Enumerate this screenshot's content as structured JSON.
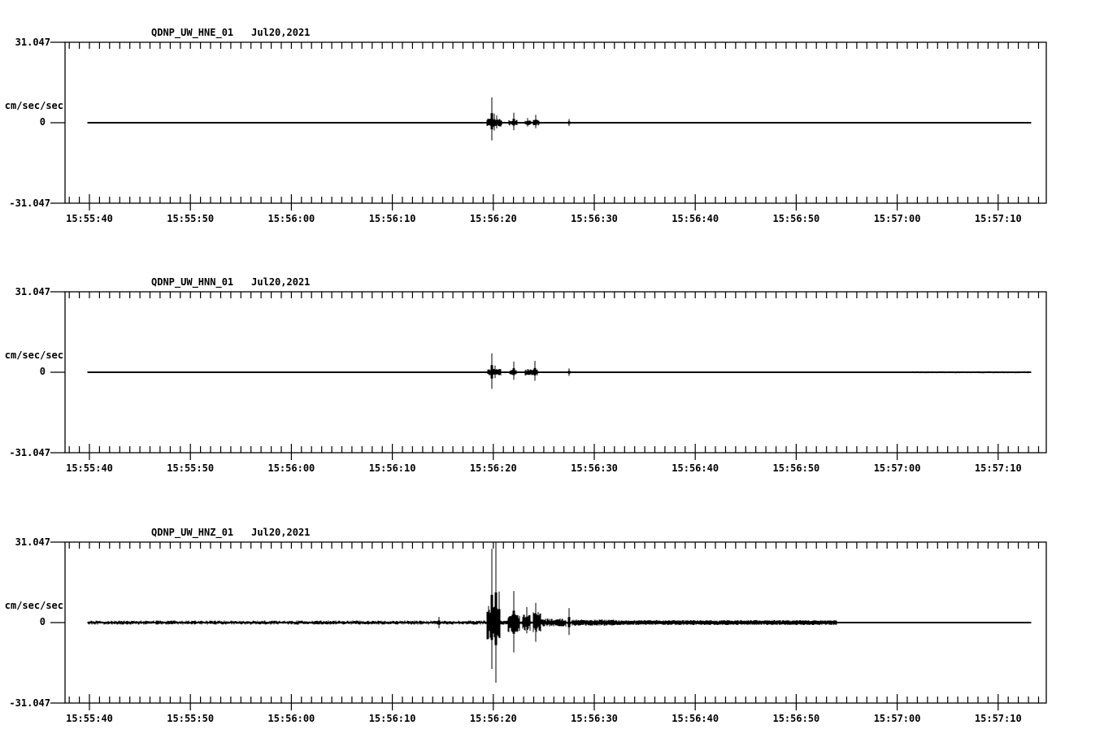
{
  "page": {
    "background": "#ffffff",
    "ink": "#000000"
  },
  "y_axis": {
    "ylim_abs": 31.047,
    "max": "31.047",
    "unit": "cm/sec/sec",
    "zero": "0",
    "min": "-31.047"
  },
  "time_axis": {
    "labels": [
      "15:55:40",
      "15:55:50",
      "15:56:00",
      "15:56:10",
      "15:56:20",
      "15:56:30",
      "15:56:40",
      "15:56:50",
      "15:57:00",
      "15:57:10"
    ],
    "major_step_s": 10,
    "minor_step_s": 1
  },
  "panels": [
    {
      "station": "QDNP_UW_HNE_01",
      "date": "Jul20,2021",
      "y_axis": {
        "max": "31.047",
        "unit": "cm/sec/sec",
        "zero": "0",
        "min": "-31.047"
      }
    },
    {
      "station": "QDNP_UW_HNN_01",
      "date": "Jul20,2021",
      "y_axis": {
        "max": "31.047",
        "unit": "cm/sec/sec",
        "zero": "0",
        "min": "-31.047"
      }
    },
    {
      "station": "QDNP_UW_HNZ_01",
      "date": "Jul20,2021",
      "y_axis": {
        "max": "31.047",
        "unit": "cm/sec/sec",
        "zero": "0",
        "min": "-31.047"
      }
    }
  ],
  "chart_data": [
    {
      "type": "line",
      "title": "QDNP_UW_HNE_01  Jul20,2021",
      "station_id": "QDNP_UW_HNE_01",
      "date": "Jul20,2021",
      "ylabel": "cm/sec/sec",
      "ylim": [
        -31.047,
        31.047
      ],
      "baseline": 0,
      "x_tick_labels": [
        "15:55:40",
        "15:55:50",
        "15:56:00",
        "15:56:10",
        "15:56:20",
        "15:56:30",
        "15:56:40",
        "15:56:50",
        "15:57:00",
        "15:57:10"
      ],
      "t_units": "seconds after 15:55:40",
      "amplitude_units": "cm/sec/sec",
      "trace_window_s": [
        -0.15,
        93.2
      ],
      "seed": 101,
      "noise_bands": [],
      "burst_clusters": [
        {
          "t0": 39.3,
          "t1": 40.9,
          "amp": 1.6
        },
        {
          "t0": 41.5,
          "t1": 42.4,
          "amp": 1.1
        },
        {
          "t0": 43.1,
          "t1": 43.8,
          "amp": 0.9
        },
        {
          "t0": 43.9,
          "t1": 44.6,
          "amp": 1.1
        }
      ],
      "spikes": [
        {
          "t": 39.85,
          "up": 9.8,
          "down": 6.8
        },
        {
          "t": 40.1,
          "up": 3.5,
          "down": 3.0
        },
        {
          "t": 40.35,
          "up": 2.8,
          "down": 2.2
        },
        {
          "t": 42.0,
          "up": 3.9,
          "down": 2.9
        },
        {
          "t": 43.4,
          "up": 1.8,
          "down": 1.5
        },
        {
          "t": 44.2,
          "up": 3.0,
          "down": 2.1
        },
        {
          "t": 47.5,
          "up": 1.4,
          "down": 1.3
        }
      ]
    },
    {
      "type": "line",
      "title": "QDNP_UW_HNN_01  Jul20,2021",
      "station_id": "QDNP_UW_HNN_01",
      "date": "Jul20,2021",
      "ylabel": "cm/sec/sec",
      "ylim": [
        -31.047,
        31.047
      ],
      "baseline": 0,
      "x_tick_labels": [
        "15:55:40",
        "15:55:50",
        "15:56:00",
        "15:56:10",
        "15:56:20",
        "15:56:30",
        "15:56:40",
        "15:56:50",
        "15:57:00",
        "15:57:10"
      ],
      "t_units": "seconds after 15:55:40",
      "amplitude_units": "cm/sec/sec",
      "trace_window_s": [
        -0.15,
        93.2
      ],
      "seed": 202,
      "noise_bands": [
        {
          "t0": 81.0,
          "t1": 93.2,
          "amp": 0.4
        }
      ],
      "burst_clusters": [
        {
          "t0": 39.4,
          "t1": 40.8,
          "amp": 1.3
        },
        {
          "t0": 41.6,
          "t1": 42.3,
          "amp": 0.9
        },
        {
          "t0": 43.1,
          "t1": 44.4,
          "amp": 1.2
        }
      ],
      "spikes": [
        {
          "t": 39.85,
          "up": 7.3,
          "down": 6.4
        },
        {
          "t": 40.15,
          "up": 2.6,
          "down": 2.3
        },
        {
          "t": 42.0,
          "up": 4.1,
          "down": 2.9
        },
        {
          "t": 44.15,
          "up": 4.4,
          "down": 3.3
        },
        {
          "t": 47.5,
          "up": 1.5,
          "down": 1.4
        }
      ]
    },
    {
      "type": "line",
      "title": "QDNP_UW_HNZ_01  Jul20,2021",
      "station_id": "QDNP_UW_HNZ_01",
      "date": "Jul20,2021",
      "ylabel": "cm/sec/sec",
      "ylim": [
        -31.047,
        31.047
      ],
      "baseline": 0,
      "x_tick_labels": [
        "15:55:40",
        "15:55:50",
        "15:56:00",
        "15:56:10",
        "15:56:20",
        "15:56:30",
        "15:56:40",
        "15:56:50",
        "15:57:00",
        "15:57:10"
      ],
      "t_units": "seconds after 15:55:40",
      "amplitude_units": "cm/sec/sec",
      "trace_window_s": [
        -0.15,
        93.2
      ],
      "seed": 303,
      "noise_bands": [
        {
          "t0": -0.15,
          "t1": 74.0,
          "amp": 0.8
        },
        {
          "t0": 74.0,
          "t1": 93.2,
          "amp": 0.16
        }
      ],
      "burst_clusters": [
        {
          "t0": 39.3,
          "t1": 40.7,
          "amp": 6.5
        },
        {
          "t0": 41.4,
          "t1": 42.6,
          "amp": 3.8
        },
        {
          "t0": 42.9,
          "t1": 43.7,
          "amp": 3.2
        },
        {
          "t0": 43.9,
          "t1": 44.7,
          "amp": 4.2
        },
        {
          "t0": 44.7,
          "t1": 47.2,
          "amp": 1.6
        },
        {
          "t0": 47.8,
          "t1": 52.0,
          "amp": 1.2
        },
        {
          "t0": 52.0,
          "t1": 74.0,
          "amp": 0.95
        }
      ],
      "spikes": [
        {
          "t": 34.6,
          "up": 2.2,
          "down": 2.2
        },
        {
          "t": 39.85,
          "up": 28.5,
          "down": 17.9
        },
        {
          "t": 40.25,
          "up": 31.0,
          "down": 23.2
        },
        {
          "t": 40.6,
          "up": 12.0,
          "down": 6.0
        },
        {
          "t": 42.0,
          "up": 12.2,
          "down": 11.5
        },
        {
          "t": 43.3,
          "up": 6.0,
          "down": 4.2
        },
        {
          "t": 44.2,
          "up": 7.6,
          "down": 7.4
        },
        {
          "t": 47.5,
          "up": 5.6,
          "down": 4.8
        }
      ]
    }
  ]
}
